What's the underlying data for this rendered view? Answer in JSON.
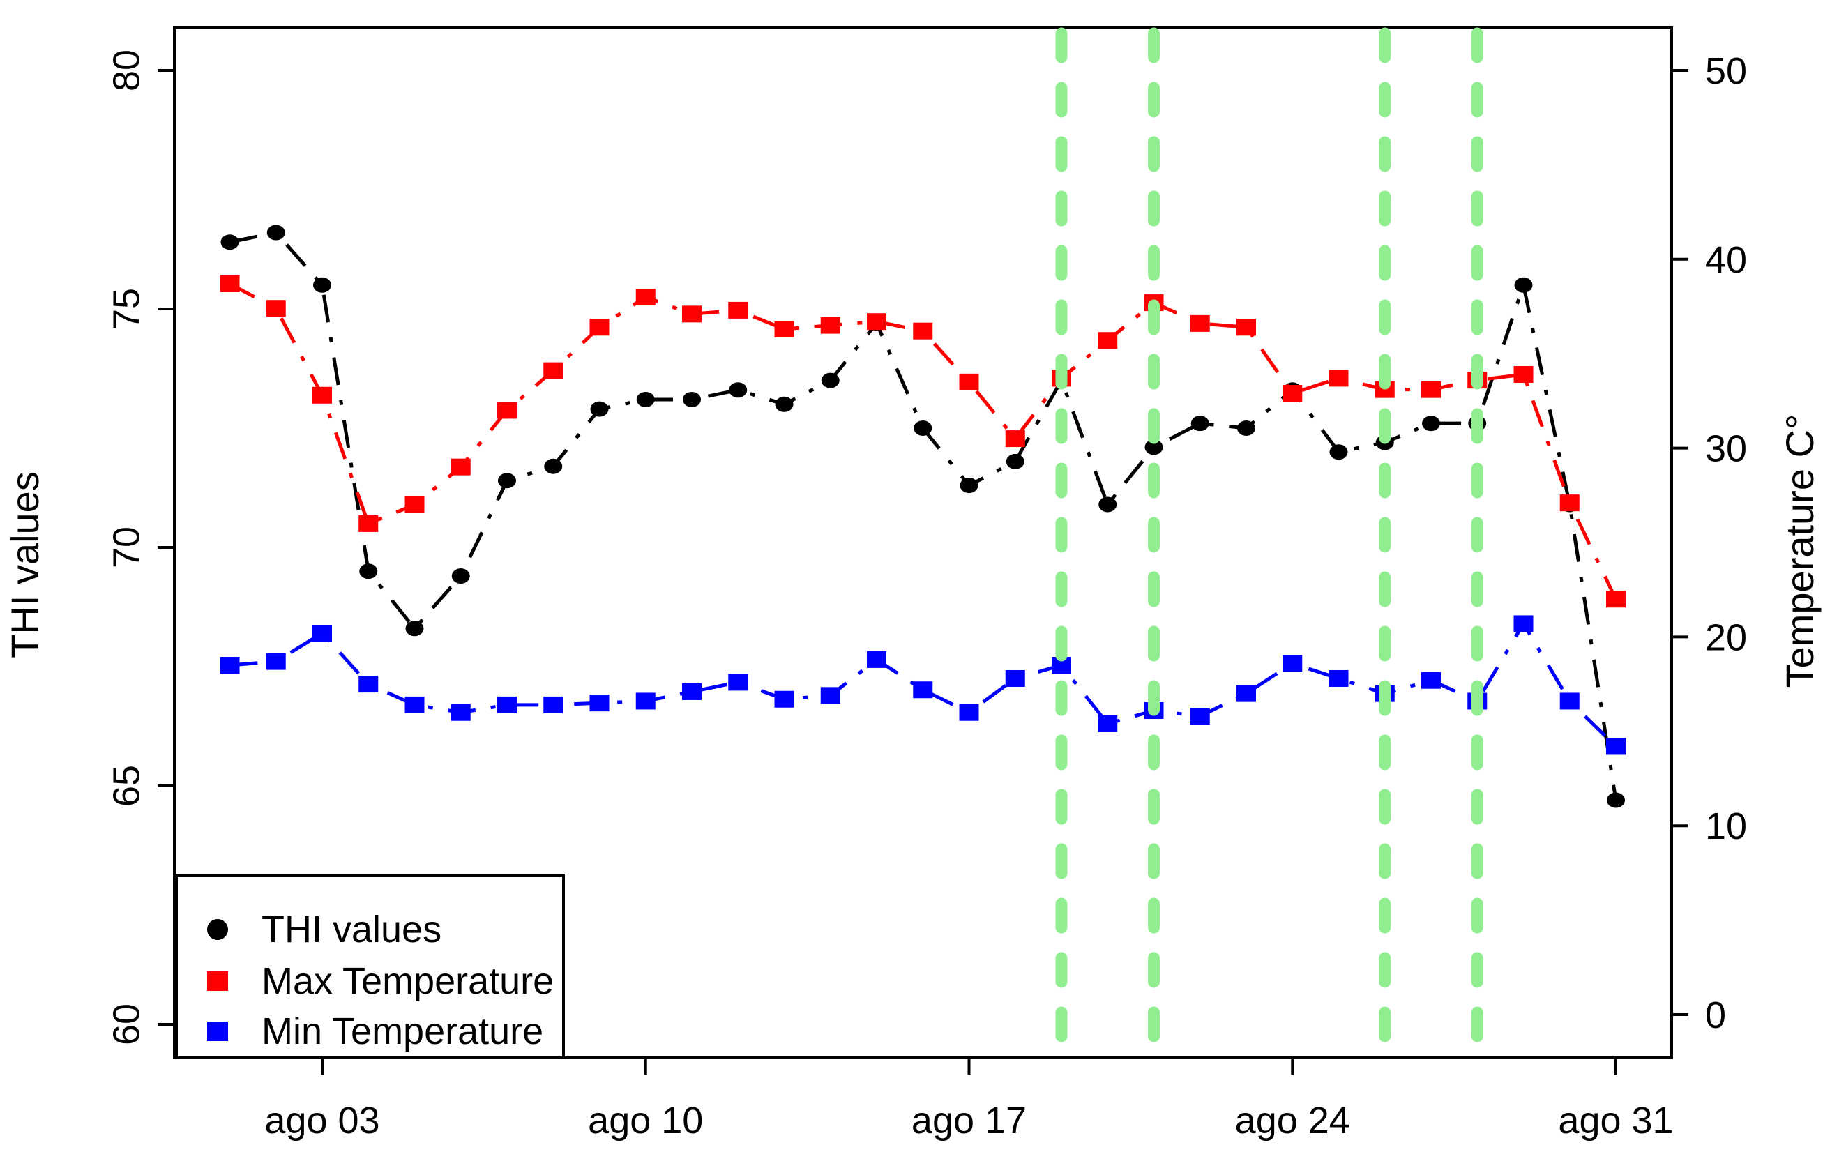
{
  "chart_data": {
    "type": "line",
    "title": "",
    "x": [
      1,
      2,
      3,
      4,
      5,
      6,
      7,
      8,
      9,
      10,
      11,
      12,
      13,
      14,
      15,
      16,
      17,
      18,
      19,
      20,
      21,
      22,
      23,
      24,
      25,
      26,
      27,
      28,
      29,
      30,
      31
    ],
    "x_axis": {
      "tick_days": [
        3,
        10,
        17,
        24,
        31
      ],
      "tick_labels": [
        "ago 03",
        "ago 10",
        "ago 17",
        "ago 24",
        "ago 31"
      ]
    },
    "y_left": {
      "title": "THI values",
      "range": [
        60,
        80
      ],
      "tick_values": [
        60,
        65,
        70,
        75,
        80
      ],
      "tick_labels": [
        "60",
        "65",
        "70",
        "75",
        "80"
      ]
    },
    "y_right": {
      "title": "Temperature C°",
      "range": [
        0,
        50
      ],
      "tick_values": [
        0,
        10,
        20,
        30,
        40,
        50
      ],
      "tick_labels": [
        "0",
        "10",
        "20",
        "30",
        "40",
        "50"
      ]
    },
    "series": [
      {
        "id": "thi-values",
        "name": "THI values",
        "axis": "left",
        "color": "#000000",
        "marker": "circle",
        "line_style": "dotdash",
        "values": [
          76.4,
          76.6,
          75.5,
          69.5,
          68.3,
          69.4,
          71.4,
          71.7,
          72.9,
          73.1,
          73.1,
          73.3,
          73.0,
          73.5,
          74.7,
          72.5,
          71.3,
          71.8,
          73.5,
          70.9,
          72.1,
          72.6,
          72.5,
          73.3,
          72.0,
          72.2,
          72.6,
          72.6,
          75.5,
          70.9,
          64.7
        ]
      },
      {
        "id": "max-temperature",
        "name": "Max Temperature",
        "axis": "right",
        "color": "#FF0000",
        "marker": "square",
        "line_style": "dotdash",
        "values": [
          38.7,
          37.4,
          32.8,
          26.0,
          27.0,
          29.0,
          32.0,
          34.1,
          36.4,
          38.0,
          37.1,
          37.3,
          36.3,
          36.5,
          36.7,
          36.2,
          33.5,
          30.5,
          33.7,
          35.7,
          37.7,
          36.6,
          36.4,
          32.9,
          33.7,
          33.1,
          33.1,
          33.6,
          33.9,
          27.1,
          22.0
        ]
      },
      {
        "id": "min-temperature",
        "name": "Min Temperature",
        "axis": "right",
        "color": "#0000FF",
        "marker": "square",
        "line_style": "dotdash",
        "values": [
          18.5,
          18.7,
          20.2,
          17.5,
          16.4,
          16.0,
          16.4,
          16.4,
          16.5,
          16.6,
          17.1,
          17.6,
          16.7,
          16.9,
          18.8,
          17.2,
          16.0,
          17.8,
          18.5,
          15.4,
          16.1,
          15.8,
          17.0,
          18.6,
          17.8,
          17.0,
          17.7,
          16.6,
          20.7,
          16.6,
          14.2
        ]
      }
    ],
    "vlines": {
      "days": [
        19,
        21,
        26,
        28
      ],
      "color": "#90EE90",
      "style": "dashed"
    },
    "legend": {
      "position": "bottom-left",
      "items": [
        {
          "label": "THI values",
          "color": "#000000",
          "marker": "circle"
        },
        {
          "label": "Max Temperature",
          "color": "#FF0000",
          "marker": "square"
        },
        {
          "label": "Min Temperature",
          "color": "#0000FF",
          "marker": "square"
        }
      ]
    },
    "grid": false,
    "frame_color": "#000000",
    "background": "#FFFFFF"
  }
}
